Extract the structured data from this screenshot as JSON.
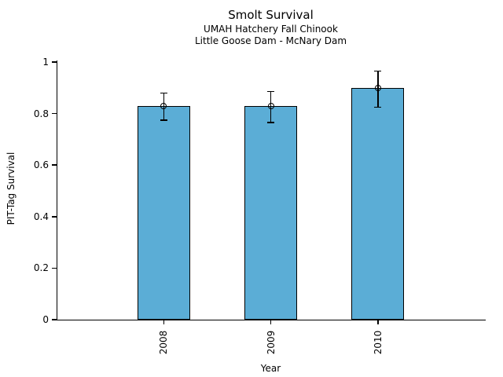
{
  "figure": {
    "kind": "static-chart"
  },
  "chart_data": {
    "type": "bar",
    "title": "Smolt Survival",
    "subtitle": [
      "UMAH Hatchery Fall Chinook",
      "Little Goose Dam - McNary Dam"
    ],
    "categories": [
      "2008",
      "2009",
      "2010"
    ],
    "values": [
      0.83,
      0.83,
      0.9
    ],
    "error_low": [
      0.775,
      0.765,
      0.825
    ],
    "error_high": [
      0.88,
      0.885,
      0.965
    ],
    "xlabel": "Year",
    "ylabel": "PIT-Tag Survival",
    "ylim": [
      0,
      1.006
    ],
    "yticks": [
      0,
      0.2,
      0.4,
      0.6,
      0.8,
      1
    ],
    "ytick_labels": [
      "0",
      "0.2",
      "0.4",
      "0.6",
      "0.8",
      "1"
    ],
    "x_tick_rotation": 90,
    "grid": false,
    "legend": null,
    "bar_color": "#5BADD6",
    "bar_edge_color": "#000000",
    "error_color": "#000000",
    "text_color": "#000000",
    "background_color": "#FFFFFF"
  }
}
